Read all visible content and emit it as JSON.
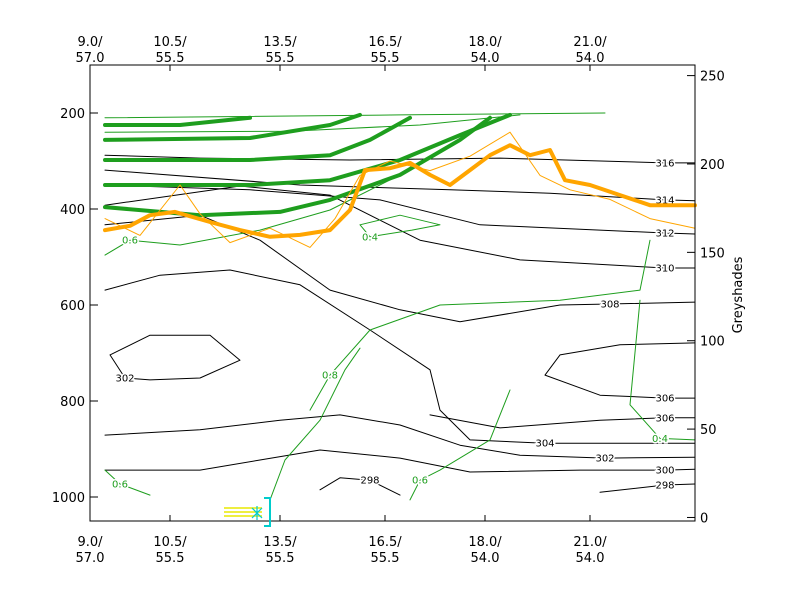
{
  "chart_data": {
    "type": "line",
    "xlim": [
      0,
      605
    ],
    "xticks": [
      {
        "value": 0,
        "label": "9.0/\n57.0"
      },
      {
        "value": 80,
        "label": "10.5/\n55.5"
      },
      {
        "value": 190,
        "label": "13.5/\n55.5"
      },
      {
        "value": 295,
        "label": "16.5/\n55.5"
      },
      {
        "value": 395,
        "label": "18.0/\n54.0"
      },
      {
        "value": 500,
        "label": "21.0/\n54.0"
      }
    ],
    "ylim": [
      1050,
      100
    ],
    "yticks": [
      200,
      400,
      600,
      800,
      1000
    ],
    "y2label": "Greyshades",
    "y2lim": [
      -2,
      256
    ],
    "y2ticks": [
      0,
      50,
      100,
      150,
      200,
      250
    ],
    "series": [
      {
        "name": "316",
        "color": "#000000",
        "linewidth": 1,
        "x": [
          15,
          110,
          260,
          410,
          575,
          605
        ],
        "values": [
          288,
          294,
          298,
          294,
          304,
          304
        ]
      },
      {
        "name": "314",
        "color": "#000000",
        "linewidth": 1,
        "x": [
          15,
          210,
          360,
          460,
          575,
          605
        ],
        "values": [
          319,
          350,
          360,
          367,
          381,
          383
        ]
      },
      {
        "name": "312",
        "color": "#000000",
        "linewidth": 1,
        "x": [
          15,
          160,
          290,
          390,
          575,
          605
        ],
        "values": [
          350,
          360,
          381,
          433,
          450,
          452
        ]
      },
      {
        "name": "310",
        "color": "#000000",
        "linewidth": 1,
        "x": [
          15,
          150,
          240,
          330,
          430,
          575,
          605
        ],
        "values": [
          392,
          352,
          371,
          465,
          506,
          523,
          523
        ]
      },
      {
        "name": "308",
        "color": "#000000",
        "linewidth": 1,
        "x": [
          15,
          110,
          170,
          240,
          310,
          370,
          470,
          520,
          605
        ],
        "values": [
          433,
          413,
          465,
          569,
          610,
          635,
          600,
          598,
          594
        ]
      },
      {
        "name": "306",
        "color": "#000000",
        "linewidth": 1,
        "x": [
          605,
          530,
          470,
          455,
          510,
          575,
          605
        ],
        "values": [
          679,
          683,
          704,
          746,
          788,
          794,
          794
        ]
      },
      {
        "name": "306",
        "color": "#000000",
        "linewidth": 1,
        "x": [
          340,
          410,
          510,
          575,
          605
        ],
        "values": [
          829,
          856,
          840,
          835,
          835
        ]
      },
      {
        "name": "304",
        "color": "#000000",
        "linewidth": 1,
        "x": [
          15,
          70,
          140,
          210,
          280,
          340,
          350,
          380,
          455,
          605
        ],
        "values": [
          569,
          538,
          527,
          558,
          652,
          735,
          819,
          881,
          888,
          888
        ]
      },
      {
        "name": "302",
        "color": "#000000",
        "linewidth": 1,
        "x": [
          20,
          60,
          120,
          150,
          110,
          60,
          35,
          20
        ],
        "values": [
          704,
          663,
          663,
          715,
          752,
          756,
          752,
          704
        ]
      },
      {
        "name": "302",
        "color": "#000000",
        "linewidth": 1,
        "x": [
          15,
          110,
          190,
          250,
          310,
          370,
          430,
          515,
          605
        ],
        "values": [
          871,
          860,
          840,
          829,
          850,
          892,
          913,
          919,
          917
        ]
      },
      {
        "name": "300",
        "color": "#000000",
        "linewidth": 1,
        "x": [
          15,
          110,
          170,
          230,
          310,
          380,
          490,
          575,
          605
        ],
        "values": [
          944,
          944,
          923,
          902,
          919,
          948,
          944,
          944,
          942
        ]
      },
      {
        "name": "298",
        "color": "#000000",
        "linewidth": 1,
        "x": [
          230,
          250,
          280,
          310
        ],
        "values": [
          985,
          960,
          965,
          996
        ]
      },
      {
        "name": "298",
        "color": "#000000",
        "linewidth": 1,
        "x": [
          510,
          575,
          605
        ],
        "values": [
          990,
          975,
          973
        ]
      },
      {
        "name": "0.6",
        "color": "#1e9e1e",
        "linewidth": 1,
        "x": [
          310,
          240,
          170,
          90,
          40,
          15
        ],
        "values": [
          329,
          402,
          444,
          475,
          465,
          496
        ]
      },
      {
        "name": "0.4",
        "color": "#1e9e1e",
        "linewidth": 1,
        "x": [
          270,
          310,
          350,
          322,
          280,
          270
        ],
        "values": [
          433,
          413,
          433,
          444,
          458,
          433
        ]
      },
      {
        "name": "0.8",
        "color": "#1e9e1e",
        "linewidth": 1,
        "x": [
          560,
          550,
          470,
          350,
          280,
          240,
          220
        ],
        "values": [
          465,
          569,
          590,
          600,
          652,
          746,
          819
        ]
      },
      {
        "name": "0.6",
        "color": "#1e9e1e",
        "linewidth": 1,
        "x": [
          420,
          400,
          350,
          330,
          320
        ],
        "values": [
          777,
          881,
          944,
          965,
          1006
        ]
      },
      {
        "name": "0.4",
        "color": "#1e9e1e",
        "linewidth": 1,
        "x": [
          550,
          540,
          570,
          605
        ],
        "values": [
          590,
          808,
          878,
          881
        ]
      },
      {
        "name": "0.6",
        "color": "#1e9e1e",
        "linewidth": 1,
        "x": [
          15,
          30,
          60
        ],
        "values": [
          944,
          973,
          996
        ]
      },
      {
        "color": "#1e9e1e",
        "linewidth": 1,
        "x": [
          180,
          195,
          230,
          255,
          270
        ],
        "values": [
          1006,
          923,
          840,
          735,
          690
        ]
      },
      {
        "color": "#1e9e1e",
        "linewidth": 1,
        "x": [
          15,
          310,
          515
        ],
        "values": [
          210,
          204,
          200
        ]
      },
      {
        "color": "#1e9e1e",
        "linewidth": 1,
        "x": [
          15,
          200,
          330,
          430
        ],
        "values": [
          240,
          238,
          225,
          204
        ]
      },
      {
        "color": "#1e9e1e",
        "linewidth": 4,
        "x": [
          15,
          110,
          190,
          240,
          310,
          370,
          400
        ],
        "values": [
          396,
          413,
          406,
          381,
          329,
          256,
          210
        ]
      },
      {
        "color": "#1e9e1e",
        "linewidth": 4,
        "x": [
          15,
          160,
          240,
          310,
          370,
          420
        ],
        "values": [
          350,
          350,
          340,
          298,
          246,
          204
        ]
      },
      {
        "color": "#1e9e1e",
        "linewidth": 4,
        "x": [
          15,
          160,
          240,
          280,
          320
        ],
        "values": [
          298,
          298,
          288,
          256,
          210
        ]
      },
      {
        "color": "#1e9e1e",
        "linewidth": 4,
        "x": [
          15,
          160,
          240,
          270
        ],
        "values": [
          256,
          252,
          225,
          204
        ]
      },
      {
        "color": "#1e9e1e",
        "linewidth": 4,
        "x": [
          15,
          90,
          160
        ],
        "values": [
          225,
          225,
          210
        ]
      },
      {
        "color": "#ffa500",
        "linewidth": 1,
        "x": [
          15,
          50,
          90,
          110,
          140,
          180,
          220,
          245,
          270,
          300,
          340,
          380,
          420,
          450,
          480,
          520,
          560,
          605
        ],
        "values": [
          420,
          455,
          350,
          410,
          470,
          440,
          480,
          420,
          330,
          300,
          320,
          290,
          240,
          330,
          360,
          380,
          420,
          440
        ]
      },
      {
        "color": "#ffa500",
        "linewidth": 4,
        "x": [
          15,
          40,
          60,
          85,
          120,
          150,
          180,
          210,
          240,
          260,
          275,
          300,
          320,
          340,
          360,
          380,
          400,
          420,
          440,
          460,
          475,
          500,
          530,
          560,
          605
        ],
        "values": [
          444,
          435,
          413,
          406,
          427,
          444,
          458,
          454,
          444,
          402,
          319,
          315,
          304,
          329,
          350,
          319,
          288,
          267,
          288,
          277,
          340,
          350,
          371,
          392,
          392
        ]
      }
    ]
  }
}
